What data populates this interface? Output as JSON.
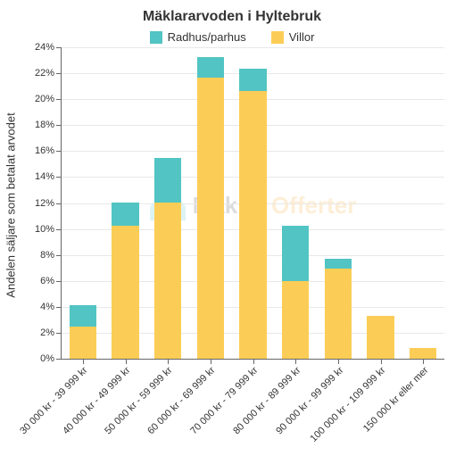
{
  "chart": {
    "type": "bar-stacked",
    "title": "Mäklararvoden i Hyltebruk",
    "title_fontsize": 16,
    "ylabel": "Andelen säljare som betalat arvodet",
    "label_fontsize": 13,
    "background_color": "#ffffff",
    "grid_color": "#e8e8e8",
    "axis_color": "#666666",
    "tick_label_color": "#333333",
    "tick_fontsize": 11,
    "ylim": [
      0,
      24
    ],
    "ytick_step": 2,
    "ytick_suffix": "%",
    "bar_width": 0.64,
    "categories": [
      "30 000 kr - 39 999 kr",
      "40 000 kr - 49 999 kr",
      "50 000 kr - 59 999 kr",
      "60 000 kr - 69 999 kr",
      "70 000 kr - 79 999 kr",
      "80 000 kr - 89 999 kr",
      "90 000 kr - 99 999 kr",
      "100 000 kr - 109 999 kr",
      "150 000 kr eller mer"
    ],
    "series": [
      {
        "name": "Villor",
        "color": "#fccd56",
        "values": [
          2.5,
          10.2,
          12.0,
          21.6,
          20.6,
          6.0,
          6.9,
          3.3,
          0.8
        ]
      },
      {
        "name": "Radhus/parhus",
        "color": "#52c4c4",
        "values": [
          1.6,
          1.8,
          3.4,
          1.6,
          1.7,
          4.2,
          0.8,
          0.0,
          0.0
        ]
      }
    ],
    "legend": {
      "items": [
        "Radhus/parhus",
        "Villor"
      ],
      "colors": [
        "#52c4c4",
        "#fccd56"
      ],
      "position": "top"
    },
    "watermark": {
      "icon_color": "#45c2c2",
      "text1": "Mäklar",
      "text1_color": "#444444",
      "text2": "Offerter",
      "text2_color": "#f6a623",
      "opacity": 0.18
    }
  }
}
